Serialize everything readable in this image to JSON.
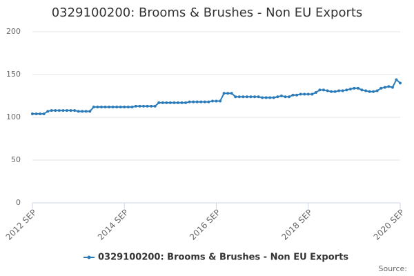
{
  "chart_data": {
    "type": "line",
    "title": "0329100200: Brooms & Brushes - Non EU Exports",
    "categories": [
      "2012 SEP",
      null,
      null,
      null,
      null,
      null,
      null,
      null,
      null,
      null,
      null,
      null,
      null,
      null,
      null,
      null,
      null,
      null,
      null,
      null,
      null,
      null,
      null,
      null,
      "2014 SEP",
      null,
      null,
      null,
      null,
      null,
      null,
      null,
      null,
      null,
      null,
      null,
      null,
      null,
      null,
      null,
      null,
      null,
      null,
      null,
      null,
      null,
      null,
      null,
      "2016 SEP",
      null,
      null,
      null,
      null,
      null,
      null,
      null,
      null,
      null,
      null,
      null,
      null,
      null,
      null,
      null,
      null,
      null,
      null,
      null,
      null,
      null,
      null,
      null,
      "2018 SEP",
      null,
      null,
      null,
      null,
      null,
      null,
      null,
      null,
      null,
      null,
      null,
      null,
      null,
      null,
      null,
      null,
      null,
      null,
      null,
      null,
      null,
      null,
      null,
      "2020 SEP"
    ],
    "series": [
      {
        "name": "0329100200: Brooms & Brushes - Non EU Exports",
        "color": "#2b7bb9",
        "values": [
          104,
          104,
          104,
          104,
          107,
          108,
          108,
          108,
          108,
          108,
          108,
          108,
          107,
          107,
          107,
          107,
          112,
          112,
          112,
          112,
          112,
          112,
          112,
          112,
          112,
          112,
          112,
          113,
          113,
          113,
          113,
          113,
          113,
          117,
          117,
          117,
          117,
          117,
          117,
          117,
          117,
          118,
          118,
          118,
          118,
          118,
          118,
          119,
          119,
          119,
          128,
          128,
          128,
          124,
          124,
          124,
          124,
          124,
          124,
          124,
          123,
          123,
          123,
          123,
          124,
          125,
          124,
          124,
          126,
          126,
          127,
          127,
          127,
          127,
          129,
          132,
          132,
          131,
          130,
          130,
          131,
          131,
          132,
          133,
          134,
          134,
          132,
          131,
          130,
          130,
          131,
          134,
          135,
          136,
          135,
          144,
          140
        ]
      }
    ],
    "ylim": [
      0,
      200
    ],
    "yticks": [
      0,
      50,
      100,
      150,
      200
    ],
    "grid": true,
    "legend": "bottom",
    "source": "Source:"
  }
}
